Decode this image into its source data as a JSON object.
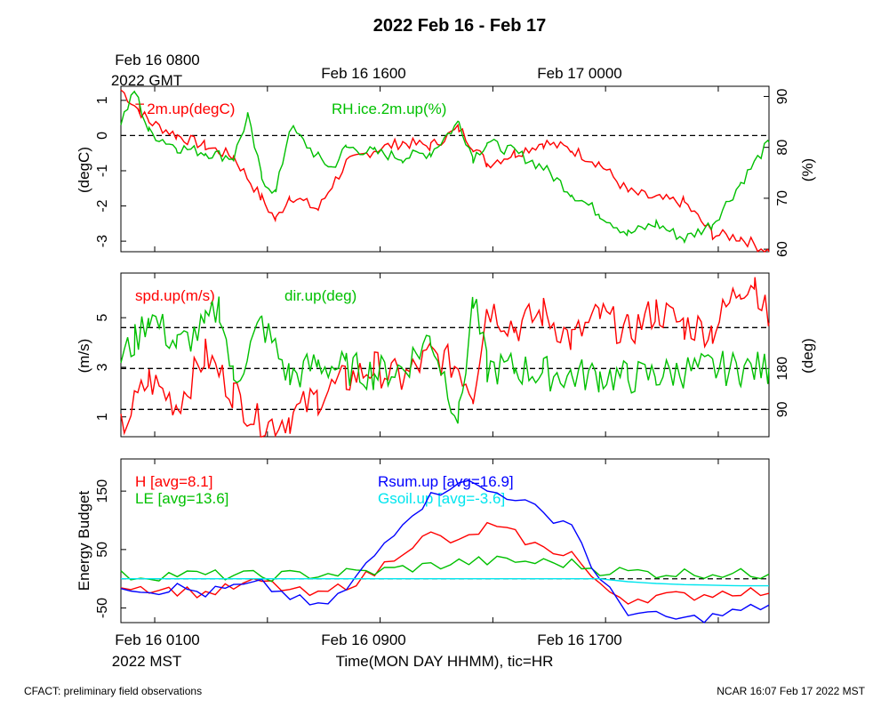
{
  "title": "2022 Feb 16 - Feb 17",
  "top_time_labels": [
    "Feb 16 0800",
    "2022 GMT",
    "Feb 16 1600",
    "Feb 17 0000"
  ],
  "bottom_time_labels": [
    "Feb 16 0100",
    "2022 MST",
    "Feb 16 0900",
    "Feb 16 1700"
  ],
  "xlabel": "Time(MON DAY HHMM), tic=HR",
  "footer_left": "CFACT: preliminary field observations",
  "footer_right": "NCAR 16:07 Feb 17 2022 MST",
  "colors": {
    "red": "#ff0000",
    "green": "#00c000",
    "blue": "#0000ff",
    "cyan": "#00e5ee"
  },
  "chart_data": [
    {
      "type": "line",
      "panel": "temperature-humidity",
      "x_range_hours": [
        0.0,
        23.0
      ],
      "left_axis": {
        "label": "(degC)",
        "ylim": [
          -3.3,
          1.4
        ],
        "ticks": [
          1,
          0,
          -1,
          -2,
          -3
        ],
        "tick_labels": [
          "1",
          "0",
          "-1",
          "-2",
          "-3"
        ]
      },
      "right_axis": {
        "label": "(%)",
        "ylim": [
          59.5,
          92
        ],
        "ticks": [
          90,
          80,
          70,
          60
        ],
        "tick_labels": [
          "90",
          "80",
          "70",
          "60"
        ]
      },
      "reference_lines_left": [
        0
      ],
      "series": [
        {
          "name": "T.2m.up(degC)",
          "color": "red",
          "axis": "left",
          "x": [
            0,
            1,
            2,
            3,
            4,
            5,
            5.5,
            6,
            7,
            7.5,
            8,
            9,
            10,
            11,
            12,
            12.5,
            13,
            14,
            15,
            16,
            17,
            18,
            19,
            20,
            21,
            22,
            23
          ],
          "values": [
            1.3,
            0.4,
            0.0,
            -0.3,
            -0.6,
            -1.8,
            -2.4,
            -1.7,
            -2.1,
            -1.4,
            -0.8,
            -0.4,
            -0.2,
            -0.3,
            0.2,
            -0.3,
            -0.8,
            -0.5,
            -0.2,
            -0.4,
            -0.8,
            -1.6,
            -1.8,
            -1.9,
            -2.8,
            -2.9,
            -3.3
          ]
        },
        {
          "name": "RH.ice.2m.up(%)",
          "color": "green",
          "axis": "right",
          "x": [
            0,
            0.5,
            1,
            2,
            3,
            4,
            4.5,
            5,
            5.5,
            6,
            7,
            7.5,
            8,
            9,
            10,
            11,
            12,
            12.5,
            13,
            14,
            15,
            16,
            17,
            18,
            19,
            20,
            21,
            22,
            23
          ],
          "values": [
            85,
            91,
            83,
            80,
            79,
            78,
            86,
            74,
            71,
            84,
            78,
            76,
            80,
            79,
            78,
            79,
            85,
            78,
            81,
            79,
            76,
            71,
            67,
            63,
            65,
            62,
            65,
            73,
            81
          ]
        }
      ]
    },
    {
      "type": "line",
      "panel": "wind",
      "x_range_hours": [
        0.0,
        23.0
      ],
      "left_axis": {
        "label": "(m/s)",
        "ylim": [
          0.2,
          6.8
        ],
        "ticks": [
          1,
          3,
          5
        ],
        "tick_labels": [
          "1",
          "3",
          "5"
        ]
      },
      "right_axis": {
        "label": "(deg)",
        "ylim": [
          30,
          390
        ],
        "ticks": [
          90,
          180
        ],
        "tick_labels": [
          "90",
          "180"
        ]
      },
      "reference_lines_right": [
        90,
        180,
        270
      ],
      "series": [
        {
          "name": "spd.up(m/s)",
          "color": "red",
          "axis": "left",
          "x": [
            0,
            1,
            2,
            3,
            4,
            5,
            6,
            7,
            8,
            9,
            10,
            11,
            12,
            12.5,
            13,
            14,
            15,
            16,
            17,
            18,
            19,
            20,
            21,
            22,
            22.5,
            23
          ],
          "values": [
            0.5,
            2.5,
            1.5,
            3.5,
            2.0,
            0.6,
            1.0,
            1.8,
            2.5,
            3.0,
            2.5,
            3.5,
            3.0,
            2.0,
            5.5,
            4.6,
            5.2,
            4.1,
            5.1,
            4.4,
            5.3,
            4.7,
            4.5,
            6.3,
            6.5,
            4.8
          ]
        },
        {
          "name": "dir.up(deg)",
          "color": "green",
          "axis": "right",
          "x": [
            0,
            0.5,
            1,
            2,
            3,
            3.5,
            4,
            5,
            6,
            7,
            8,
            9,
            10,
            11,
            12,
            12.5,
            13,
            14,
            15,
            16,
            17,
            18,
            19,
            20,
            21,
            22,
            23
          ],
          "values": [
            200,
            240,
            300,
            230,
            270,
            320,
            150,
            280,
            160,
            190,
            180,
            170,
            180,
            250,
            70,
            330,
            180,
            180,
            170,
            165,
            165,
            160,
            165,
            175,
            180,
            180,
            180
          ]
        }
      ]
    },
    {
      "type": "line",
      "panel": "energy-budget",
      "x_range_hours": [
        0.0,
        23.0
      ],
      "ylabel": "Energy Budget",
      "ylim": [
        -75,
        205
      ],
      "ticks": [
        -50,
        50,
        150
      ],
      "tick_labels": [
        "-50",
        "50",
        "150"
      ],
      "reference_lines": [
        0
      ],
      "series": [
        {
          "name": "H [avg=8.1]",
          "color": "red",
          "x": [
            0,
            1,
            2,
            3,
            4,
            5,
            6,
            7,
            8,
            9,
            10,
            11,
            12,
            13,
            14,
            15,
            16,
            17,
            18,
            19,
            20,
            21,
            22,
            23
          ],
          "values": [
            -10,
            -15,
            -20,
            -25,
            -15,
            -5,
            -20,
            -30,
            -10,
            10,
            50,
            75,
            60,
            90,
            75,
            50,
            45,
            -15,
            -35,
            -30,
            -30,
            -25,
            -20,
            -25
          ]
        },
        {
          "name": "LE [avg=13.6]",
          "color": "green",
          "x": [
            0,
            1,
            2,
            3,
            4,
            5,
            6,
            7,
            8,
            9,
            10,
            11,
            12,
            13,
            14,
            15,
            16,
            17,
            18,
            19,
            20,
            21,
            22,
            23
          ],
          "values": [
            5,
            5,
            8,
            6,
            6,
            4,
            6,
            8,
            10,
            12,
            18,
            22,
            28,
            30,
            30,
            28,
            26,
            15,
            12,
            10,
            10,
            10,
            8,
            8
          ]
        },
        {
          "name": "Rsum.up [avg=16.9]",
          "color": "blue",
          "x": [
            0,
            1,
            2,
            3,
            4,
            5,
            6,
            7,
            8,
            9,
            10,
            11,
            12,
            13,
            14,
            15,
            16,
            17,
            18,
            19,
            20,
            21,
            22,
            23
          ],
          "values": [
            -10,
            -20,
            -15,
            -25,
            -15,
            -10,
            -30,
            -50,
            -20,
            40,
            100,
            140,
            170,
            150,
            140,
            110,
            95,
            -5,
            -55,
            -65,
            -70,
            -65,
            -55,
            -45
          ]
        },
        {
          "name": "Gsoil.up [avg=-3.6]",
          "color": "cyan",
          "x": [
            0,
            1,
            2,
            3,
            4,
            5,
            6,
            7,
            8,
            9,
            10,
            11,
            12,
            13,
            14,
            15,
            16,
            17,
            18,
            19,
            20,
            21,
            22,
            23
          ],
          "values": [
            0,
            0,
            0,
            0,
            0,
            0,
            0,
            0,
            0,
            0,
            0,
            0,
            0,
            0,
            0,
            0,
            0,
            0,
            -5,
            -8,
            -10,
            -11,
            -12,
            -12
          ]
        }
      ]
    }
  ]
}
